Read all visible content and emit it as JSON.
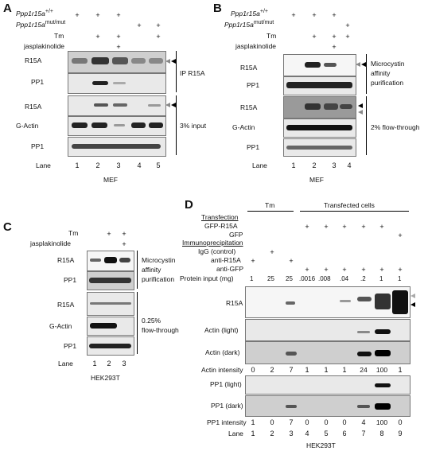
{
  "panels": {
    "A": {
      "letter": "A",
      "conditions": [
        {
          "label": "Ppp1r15a",
          "sup": "+/+",
          "marks": [
            "+",
            "+",
            "+",
            "",
            ""
          ]
        },
        {
          "label": "Ppp1r15a",
          "sup": "mut/mut",
          "marks": [
            "",
            "",
            "",
            "+",
            "+"
          ]
        },
        {
          "label": "Tm",
          "marks": [
            "",
            "+",
            "+",
            "",
            "+"
          ]
        },
        {
          "label": "jasplakinolide",
          "marks": [
            "",
            "",
            "+",
            "",
            ""
          ]
        }
      ],
      "rows": [
        "R15A",
        "PP1",
        "R15A",
        "G-Actin",
        "PP1"
      ],
      "group_labels": [
        "IP R15A",
        "3% input"
      ],
      "lane_label": "Lane",
      "lanes": [
        "1",
        "2",
        "3",
        "4",
        "5"
      ],
      "cell": "MEF"
    },
    "B": {
      "letter": "B",
      "conditions": [
        {
          "label": "Ppp1r15a",
          "sup": "+/+",
          "marks": [
            "+",
            "+",
            "+",
            ""
          ]
        },
        {
          "label": "Ppp1r15a",
          "sup": "mut/mut",
          "marks": [
            "",
            "",
            "",
            "+"
          ]
        },
        {
          "label": "Tm",
          "marks": [
            "",
            "+",
            "+",
            "+"
          ]
        },
        {
          "label": "jasplakinolide",
          "marks": [
            "",
            "",
            "+",
            ""
          ]
        }
      ],
      "rows": [
        "R15A",
        "PP1",
        "R15A",
        "G-Actin",
        "PP1"
      ],
      "group_labels": [
        "Microcystin",
        "affinity",
        "purification",
        "2% flow-through"
      ],
      "lane_label": "Lane",
      "lanes": [
        "1",
        "2",
        "3",
        "4"
      ],
      "cell": "MEF"
    },
    "C": {
      "letter": "C",
      "conditions": [
        {
          "label": "Tm",
          "marks": [
            "",
            "+",
            "+"
          ]
        },
        {
          "label": "jasplakinolide",
          "marks": [
            "",
            "",
            "+"
          ]
        }
      ],
      "rows": [
        "R15A",
        "PP1",
        "R15A",
        "G-Actin",
        "PP1"
      ],
      "group_labels": [
        "Microcystin",
        "affinity",
        "purification",
        "0.25%",
        "flow-through"
      ],
      "lane_label": "Lane",
      "lanes": [
        "1",
        "2",
        "3"
      ],
      "cell": "HEK293T"
    },
    "D": {
      "letter": "D",
      "header_left": "Tm",
      "header_right": "Transfected cells",
      "transfection_label": "Transfection",
      "transfection_rows": [
        {
          "label": "GFP-R15A",
          "marks": [
            "",
            "",
            "",
            "+",
            "+",
            "+",
            "+",
            "+",
            ""
          ]
        },
        {
          "label": "GFP",
          "marks": [
            "",
            "",
            "",
            "",
            "",
            "",
            "",
            "",
            "+"
          ]
        }
      ],
      "ip_label": "Immunoprecipitation",
      "ip_rows": [
        {
          "label": "IgG (control)",
          "marks": [
            "",
            "+",
            "",
            "",
            "",
            "",
            "",
            "",
            ""
          ]
        },
        {
          "label": "anti-R15A",
          "marks": [
            "+",
            "",
            "+",
            "",
            "",
            "",
            "",
            "",
            ""
          ]
        },
        {
          "label": "anti-GFP",
          "marks": [
            "",
            "",
            "",
            "+",
            "+",
            "+",
            "+",
            "+",
            "+"
          ]
        }
      ],
      "protein_label": "Protein input (mg)",
      "protein_values": [
        "1",
        "25",
        "25",
        ".0016",
        ".008",
        ".04",
        ".2",
        "1",
        "1"
      ],
      "rows": [
        "R15A",
        "Actin (light)",
        "Actin (dark)",
        "PP1 (light)",
        "PP1 (dark)"
      ],
      "actin_intensity_label": "Actin intensity",
      "actin_intensity": [
        "0",
        "2",
        "7",
        "1",
        "1",
        "1",
        "24",
        "100",
        "1"
      ],
      "pp1_intensity_label": "PP1 intensity",
      "pp1_intensity": [
        "1",
        "0",
        "7",
        "0",
        "0",
        "0",
        "4",
        "100",
        "0"
      ],
      "lane_label": "Lane",
      "lanes": [
        "1",
        "2",
        "3",
        "4",
        "5",
        "6",
        "7",
        "8",
        "9"
      ],
      "cell": "HEK293T"
    }
  }
}
